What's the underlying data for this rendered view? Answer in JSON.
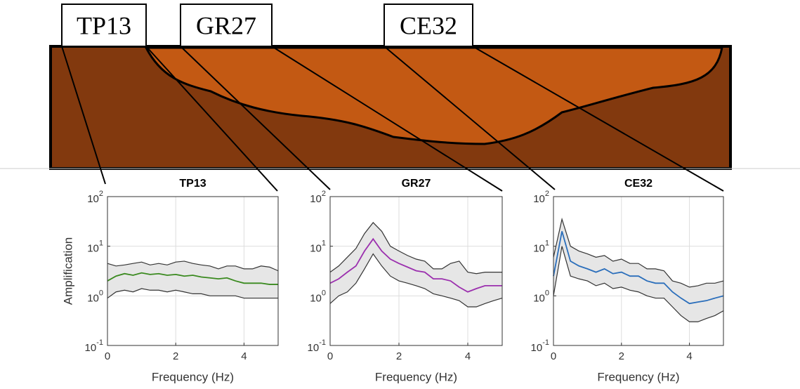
{
  "diagram": {
    "stations": [
      "TP13",
      "GR27",
      "CE32"
    ]
  },
  "chart_data": [
    {
      "type": "line",
      "title": "TP13",
      "xlabel": "Frequency (Hz)",
      "ylabel": "Amplification",
      "x": [
        0,
        0.25,
        0.5,
        0.75,
        1,
        1.25,
        1.5,
        1.75,
        2,
        2.25,
        2.5,
        2.75,
        3,
        3.25,
        3.5,
        3.75,
        4,
        4.25,
        4.5,
        4.75,
        5
      ],
      "xlim": [
        0,
        5
      ],
      "xticks": [
        0,
        2,
        4
      ],
      "ylim": [
        0.1,
        100
      ],
      "yscale": "log",
      "yticks": [
        {
          "value": 0.1,
          "label": "10",
          "exponent": "-1"
        },
        {
          "value": 1,
          "label": "10",
          "exponent": "0"
        },
        {
          "value": 10,
          "label": "10",
          "exponent": "1"
        },
        {
          "value": 100,
          "label": "10",
          "exponent": "2"
        }
      ],
      "grid": true,
      "band_color": "#e6e6e6",
      "series": [
        {
          "color": "#3a8a1f",
          "values": [
            2.0,
            2.5,
            2.8,
            2.6,
            2.9,
            2.7,
            2.8,
            2.6,
            2.7,
            2.5,
            2.6,
            2.4,
            2.3,
            2.2,
            2.3,
            2.0,
            1.8,
            1.8,
            1.8,
            1.7,
            1.7
          ]
        },
        {
          "color": "#333333",
          "values": [
            4.5,
            4.0,
            4.2,
            4.5,
            4.8,
            4.2,
            4.5,
            4.2,
            4.8,
            5.0,
            4.5,
            4.2,
            4.0,
            3.5,
            4.0,
            4.0,
            3.5,
            3.5,
            4.0,
            3.8,
            3.2
          ]
        },
        {
          "color": "#333333",
          "values": [
            0.9,
            1.2,
            1.3,
            1.2,
            1.4,
            1.3,
            1.3,
            1.2,
            1.3,
            1.2,
            1.1,
            1.1,
            1.0,
            1.0,
            1.0,
            1.0,
            0.9,
            0.9,
            0.9,
            0.9,
            0.9
          ]
        }
      ]
    },
    {
      "type": "line",
      "title": "GR27",
      "xlabel": "Frequency (Hz)",
      "x": [
        0,
        0.25,
        0.5,
        0.75,
        1,
        1.25,
        1.5,
        1.75,
        2,
        2.25,
        2.5,
        2.75,
        3,
        3.25,
        3.5,
        3.75,
        4,
        4.25,
        4.5,
        4.75,
        5
      ],
      "xlim": [
        0,
        5
      ],
      "xticks": [
        0,
        2,
        4
      ],
      "ylim": [
        0.1,
        100
      ],
      "yscale": "log",
      "yticks": [
        {
          "value": 0.1,
          "label": "10",
          "exponent": "-1"
        },
        {
          "value": 1,
          "label": "10",
          "exponent": "0"
        },
        {
          "value": 10,
          "label": "10",
          "exponent": "1"
        },
        {
          "value": 100,
          "label": "10",
          "exponent": "2"
        }
      ],
      "grid": true,
      "band_color": "#e6e6e6",
      "series": [
        {
          "color": "#9b2fae",
          "values": [
            1.8,
            2.2,
            3.0,
            4.0,
            8,
            14,
            8,
            5.5,
            4.5,
            3.8,
            3.2,
            3.0,
            2.2,
            2.2,
            2.0,
            1.5,
            1.2,
            1.4,
            1.6,
            1.6,
            1.6
          ]
        },
        {
          "color": "#333333",
          "values": [
            3.0,
            4.0,
            6,
            9,
            18,
            30,
            20,
            10,
            8,
            6.5,
            5.5,
            5,
            3.5,
            3.5,
            4.5,
            5,
            3.0,
            2.8,
            3.0,
            3.0,
            3.0
          ]
        },
        {
          "color": "#333333",
          "values": [
            0.7,
            1.0,
            1.2,
            1.8,
            3.5,
            7,
            4,
            2.5,
            2.0,
            1.8,
            1.6,
            1.4,
            1.1,
            1.0,
            0.9,
            0.8,
            0.6,
            0.6,
            0.7,
            0.8,
            0.9
          ]
        }
      ]
    },
    {
      "type": "line",
      "title": "CE32",
      "xlabel": "Frequency (Hz)",
      "x": [
        0,
        0.25,
        0.5,
        0.75,
        1,
        1.25,
        1.5,
        1.75,
        2,
        2.25,
        2.5,
        2.75,
        3,
        3.25,
        3.5,
        3.75,
        4,
        4.25,
        4.5,
        4.75,
        5
      ],
      "xlim": [
        0,
        5
      ],
      "xticks": [
        0,
        2,
        4
      ],
      "ylim": [
        0.1,
        100
      ],
      "yscale": "log",
      "yticks": [
        {
          "value": 0.1,
          "label": "10",
          "exponent": "-1"
        },
        {
          "value": 1,
          "label": "10",
          "exponent": "0"
        },
        {
          "value": 10,
          "label": "10",
          "exponent": "1"
        },
        {
          "value": 100,
          "label": "10",
          "exponent": "2"
        }
      ],
      "grid": true,
      "band_color": "#e6e6e6",
      "series": [
        {
          "color": "#2a6ebb",
          "values": [
            2.5,
            20,
            5,
            4,
            3.5,
            3.0,
            3.5,
            2.8,
            3.0,
            2.5,
            2.5,
            2.0,
            1.8,
            1.8,
            1.2,
            0.9,
            0.7,
            0.75,
            0.8,
            0.9,
            1.0
          ]
        },
        {
          "color": "#333333",
          "values": [
            6,
            35,
            10,
            8,
            7,
            6,
            6.5,
            5,
            5.5,
            4.5,
            4.5,
            3.5,
            3.5,
            3.2,
            2.0,
            1.8,
            1.5,
            1.6,
            1.8,
            1.8,
            2.0
          ]
        },
        {
          "color": "#333333",
          "values": [
            1.0,
            10,
            2.5,
            2.2,
            2.0,
            1.6,
            1.8,
            1.4,
            1.5,
            1.3,
            1.2,
            1.0,
            0.9,
            0.9,
            0.6,
            0.4,
            0.3,
            0.3,
            0.35,
            0.4,
            0.5
          ]
        }
      ]
    }
  ]
}
